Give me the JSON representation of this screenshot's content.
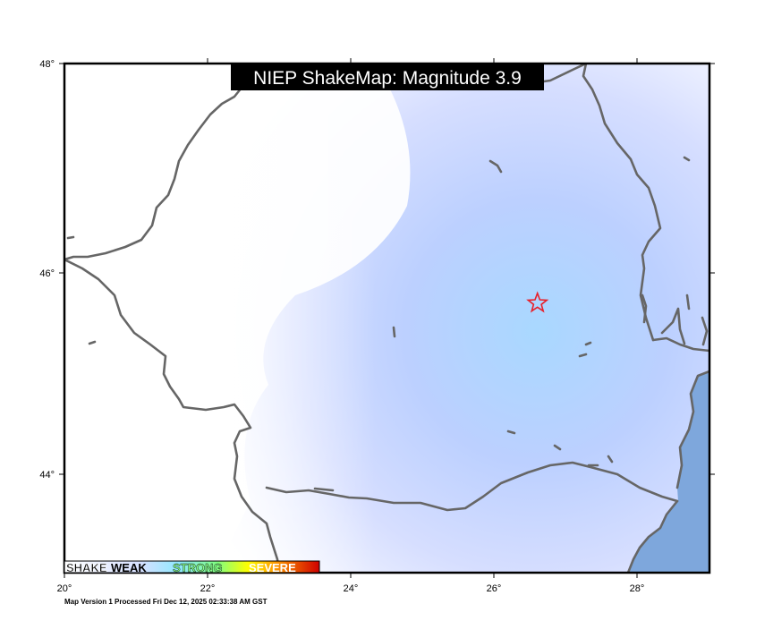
{
  "title": "NIEP ShakeMap: Magnitude 3.9",
  "x_ticks": [
    "20°",
    "22°",
    "24°",
    "26°",
    "28°"
  ],
  "y_ticks": [
    "48°",
    "46°",
    "44°"
  ],
  "footer": "Map Version 1 Processed Fri Dec 12, 2025 02:33:38 AM GST",
  "legend": {
    "items": [
      {
        "label": "SHAKE",
        "color": "#ffffff"
      },
      {
        "label": "WEAK",
        "color": "#9fd8ff"
      },
      {
        "label": "STRONG",
        "color": "#7dffb0"
      },
      {
        "label": "SEVERE",
        "color": "#ffd000"
      }
    ]
  },
  "epicenter": {
    "icon": "star-icon",
    "lon": 26.6,
    "lat": 45.7,
    "color": "#e8202a"
  },
  "extent": {
    "lon": [
      20,
      29
    ],
    "lat": [
      43,
      48
    ]
  },
  "colors": {
    "sea": "#7ea7dc",
    "border": "#666666",
    "shaking": "#b4ccff"
  }
}
